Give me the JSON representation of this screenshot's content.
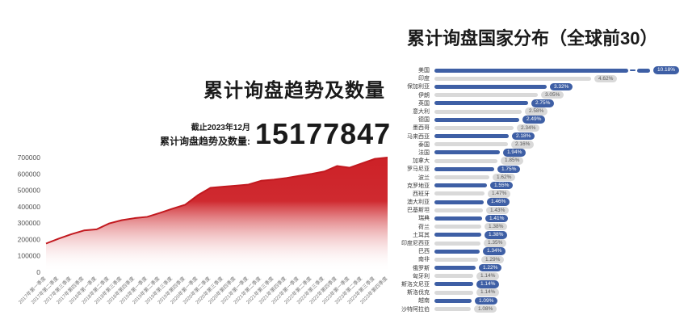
{
  "colors": {
    "area_red": "#cd2127",
    "line_red": "#c2191f",
    "bar_blue": "#3e5fa5",
    "bar_gray": "#d9d9d9",
    "badge_gray_text": "#595959",
    "axis_text": "#555555",
    "tick_text": "#777777"
  },
  "left_panel": {
    "title": "累计询盘趋势及数量",
    "asof_label": "截止2023年12月",
    "count_label": "累计询盘趋势及数量:",
    "count_value": "15177847"
  },
  "right_panel": {
    "title": "累计询盘国家分布（全球前30）"
  },
  "chart_data": [
    {
      "type": "area",
      "title": "累计询盘趋势及数量",
      "xlabel": "",
      "ylabel": "",
      "ylim": [
        0,
        700000
      ],
      "yticks": [
        0,
        100000,
        200000,
        300000,
        400000,
        500000,
        600000,
        700000
      ],
      "grid": false,
      "categories": [
        "2017年第一季度",
        "2017年第二季度",
        "2017年第三季度",
        "2017年第四季度",
        "2018年第一季度",
        "2018年第二季度",
        "2018年第三季度",
        "2018年第四季度",
        "2019年第一季度",
        "2019年第二季度",
        "2019年第三季度",
        "2019年第四季度",
        "2020年第一季度",
        "2020年第二季度",
        "2020年第三季度",
        "2020年第四季度",
        "2021年第一季度",
        "2021年第二季度",
        "2021年第三季度",
        "2021年第四季度",
        "2022年第一季度",
        "2022年第二季度",
        "2022年第三季度",
        "2022年第四季度",
        "2023年第一季度",
        "2023年第二季度",
        "2023年第三季度",
        "2023年第四季度"
      ],
      "values": [
        175000,
        205000,
        232000,
        255000,
        262000,
        298000,
        318000,
        330000,
        338000,
        362000,
        388000,
        412000,
        470000,
        515000,
        522000,
        528000,
        535000,
        558000,
        565000,
        575000,
        588000,
        600000,
        615000,
        648000,
        638000,
        665000,
        692000,
        700000
      ]
    },
    {
      "type": "bar",
      "orientation": "horizontal",
      "title": "累计询盘国家分布（全球前30）",
      "value_format": "percent",
      "axis_break_on_first_bar": true,
      "categories": [
        "美国",
        "印度",
        "保加利亚",
        "伊朗",
        "英国",
        "意大利",
        "德国",
        "墨西哥",
        "马来西亚",
        "泰国",
        "法国",
        "加拿大",
        "罗马尼亚",
        "波兰",
        "克罗地亚",
        "西班牙",
        "澳大利亚",
        "巴基斯坦",
        "瑞典",
        "荷兰",
        "土耳其",
        "印度尼西亚",
        "巴西",
        "南非",
        "俄罗斯",
        "匈牙利",
        "斯洛文尼亚",
        "斯洛伐克",
        "越南",
        "沙特阿拉伯"
      ],
      "values": [
        10.18,
        4.62,
        3.32,
        3.05,
        2.75,
        2.58,
        2.49,
        2.34,
        2.18,
        2.16,
        1.94,
        1.85,
        1.75,
        1.62,
        1.55,
        1.47,
        1.46,
        1.43,
        1.41,
        1.38,
        1.38,
        1.35,
        1.34,
        1.29,
        1.22,
        1.14,
        1.14,
        1.14,
        1.09,
        1.08
      ],
      "labels": [
        "10.18%",
        "4.62%",
        "3.32%",
        "3.05%",
        "2.75%",
        "2.58%",
        "2.49%",
        "2.34%",
        "2.18%",
        "2.16%",
        "1.94%",
        "1.85%",
        "1.75%",
        "1.62%",
        "1.55%",
        "1.47%",
        "1.46%",
        "1.43%",
        "1.41%",
        "1.38%",
        "1.38%",
        "1.35%",
        "1.34%",
        "1.29%",
        "1.22%",
        "1.14%",
        "1.14%",
        "1.14%",
        "1.09%",
        "1.08%"
      ]
    }
  ]
}
